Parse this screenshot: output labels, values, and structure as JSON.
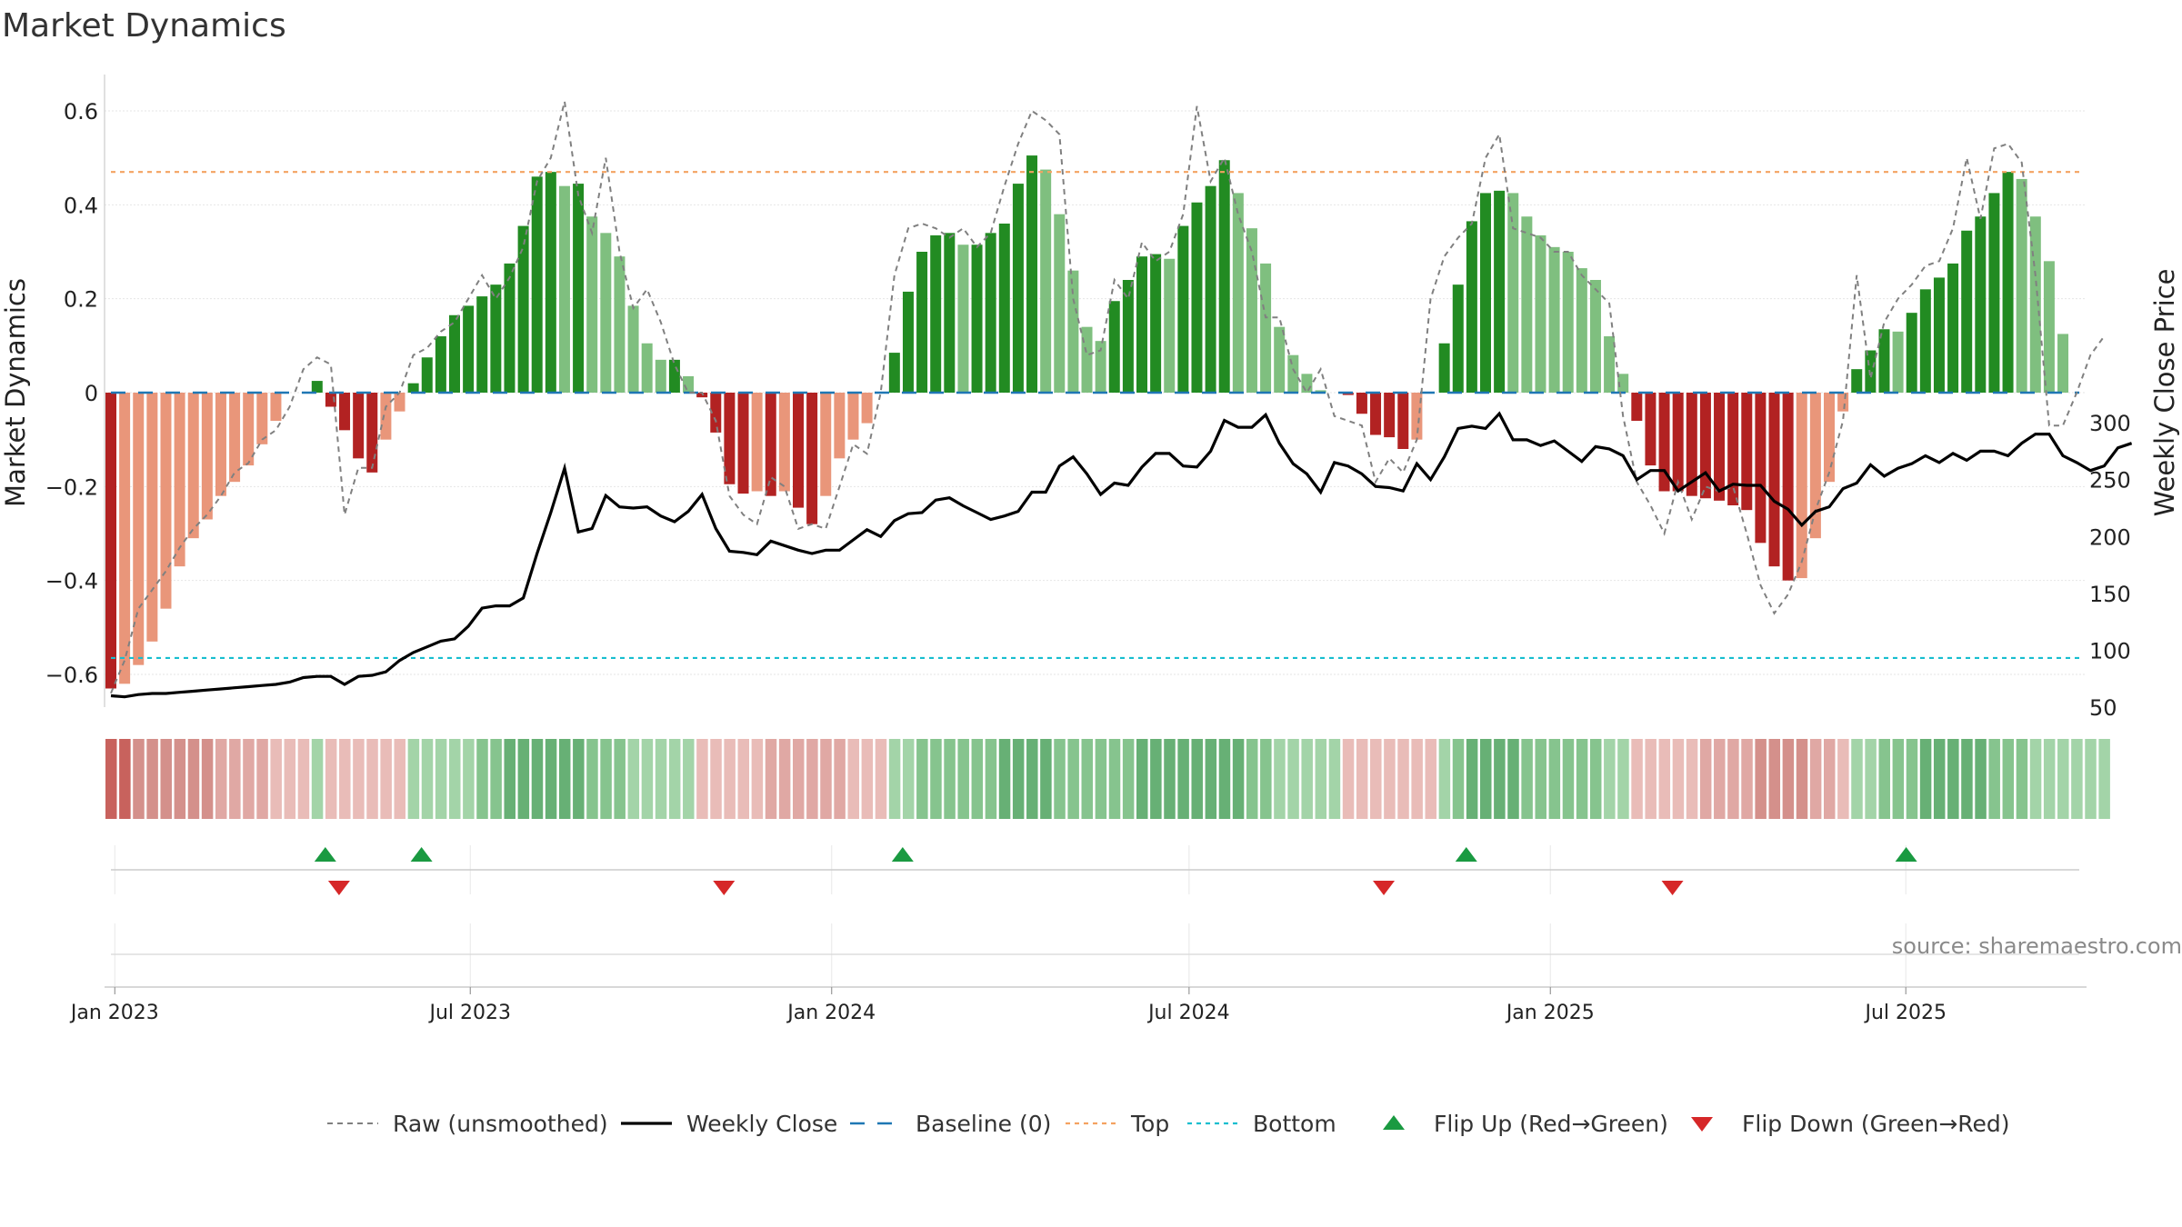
{
  "page": {
    "title": "Market Dynamics",
    "source": "source: sharemaestro.com"
  },
  "colors": {
    "strong_green": "#228b22",
    "light_green": "#7fbf7f",
    "strong_red": "#b22222",
    "light_red": "#e9967a",
    "raw_line": "#808080",
    "close_line": "#000000",
    "baseline": "#1f77b4",
    "top": "#f4a261",
    "bottom": "#17becf",
    "flip_up": "#1a9a41",
    "flip_down": "#d62728"
  },
  "chart_data": {
    "type": "bar",
    "title": "Market Dynamics",
    "ylabel_left": "Market Dynamics",
    "ylabel_right": "Weekly Close Price",
    "ylim_left": [
      -0.65,
      0.62
    ],
    "ylim_right": [
      40,
      320
    ],
    "yticks_left": [
      0.6,
      0.4,
      0.2,
      0,
      -0.2,
      -0.4,
      -0.6
    ],
    "ytick_labels_left": [
      "0.6",
      "0.4",
      "0.2",
      "0",
      "−0.2",
      "−0.4",
      "−0.6"
    ],
    "yticks_right": [
      300,
      250,
      200,
      150,
      100,
      50
    ],
    "ytick_labels_right": [
      "300",
      "250",
      "200",
      "150",
      "100",
      "50"
    ],
    "top_threshold": 0.47,
    "bottom_threshold": -0.565,
    "x_start": "2022-12-30",
    "x_step_days": 7,
    "x_ticks": [
      {
        "date": "2023-01-01",
        "label": "Jan 2023"
      },
      {
        "date": "2023-07-01",
        "label": "Jul 2023"
      },
      {
        "date": "2024-01-01",
        "label": "Jan 2024"
      },
      {
        "date": "2024-07-01",
        "label": "Jul 2024"
      },
      {
        "date": "2025-01-01",
        "label": "Jan 2025"
      },
      {
        "date": "2025-07-01",
        "label": "Jul 2025"
      }
    ],
    "dynamics": [
      -0.63,
      -0.62,
      -0.58,
      -0.53,
      -0.46,
      -0.37,
      -0.31,
      -0.27,
      -0.22,
      -0.19,
      -0.155,
      -0.11,
      -0.06,
      0.0,
      0.0,
      0.025,
      -0.03,
      -0.08,
      -0.14,
      -0.17,
      -0.1,
      -0.04,
      0.02,
      0.075,
      0.12,
      0.165,
      0.185,
      0.205,
      0.23,
      0.275,
      0.355,
      0.46,
      0.47,
      0.44,
      0.445,
      0.375,
      0.34,
      0.29,
      0.185,
      0.105,
      0.07,
      0.07,
      0.035,
      -0.01,
      -0.085,
      -0.195,
      -0.215,
      -0.21,
      -0.22,
      -0.21,
      -0.245,
      -0.28,
      -0.22,
      -0.14,
      -0.1,
      -0.065,
      0.0,
      0.085,
      0.215,
      0.3,
      0.335,
      0.34,
      0.315,
      0.315,
      0.34,
      0.36,
      0.445,
      0.505,
      0.475,
      0.38,
      0.26,
      0.14,
      0.11,
      0.195,
      0.24,
      0.29,
      0.295,
      0.285,
      0.355,
      0.405,
      0.44,
      0.495,
      0.425,
      0.35,
      0.275,
      0.14,
      0.08,
      0.04,
      0.005,
      0.0,
      -0.005,
      -0.045,
      -0.09,
      -0.095,
      -0.12,
      -0.1,
      0.0,
      0.105,
      0.23,
      0.365,
      0.425,
      0.43,
      0.425,
      0.375,
      0.335,
      0.31,
      0.3,
      0.265,
      0.24,
      0.12,
      0.04,
      -0.06,
      -0.155,
      -0.21,
      -0.21,
      -0.22,
      -0.225,
      -0.23,
      -0.24,
      -0.25,
      -0.32,
      -0.37,
      -0.4,
      -0.395,
      -0.31,
      -0.19,
      -0.04,
      0.05,
      0.09,
      0.135,
      0.13,
      0.17,
      0.22,
      0.245,
      0.275,
      0.345,
      0.375,
      0.425,
      0.47,
      0.455,
      0.375,
      0.28,
      0.125,
      0.0,
      0.0,
      0.0
    ],
    "raw": [
      -0.64,
      -0.57,
      -0.46,
      -0.42,
      -0.38,
      -0.33,
      -0.29,
      -0.26,
      -0.22,
      -0.17,
      -0.15,
      -0.1,
      -0.08,
      -0.03,
      0.05,
      0.075,
      0.06,
      -0.26,
      -0.16,
      -0.16,
      -0.03,
      0.0,
      0.08,
      0.095,
      0.13,
      0.15,
      0.2,
      0.25,
      0.2,
      0.245,
      0.31,
      0.45,
      0.5,
      0.62,
      0.42,
      0.34,
      0.5,
      0.3,
      0.18,
      0.22,
      0.15,
      0.06,
      0.0,
      0.0,
      -0.06,
      -0.22,
      -0.26,
      -0.28,
      -0.18,
      -0.2,
      -0.29,
      -0.28,
      -0.29,
      -0.2,
      -0.11,
      -0.13,
      0.0,
      0.25,
      0.35,
      0.36,
      0.35,
      0.33,
      0.35,
      0.31,
      0.34,
      0.44,
      0.53,
      0.6,
      0.58,
      0.55,
      0.2,
      0.08,
      0.09,
      0.24,
      0.2,
      0.32,
      0.28,
      0.3,
      0.38,
      0.61,
      0.45,
      0.5,
      0.38,
      0.3,
      0.16,
      0.16,
      0.05,
      0.0,
      0.05,
      -0.05,
      -0.06,
      -0.07,
      -0.19,
      -0.14,
      -0.17,
      -0.1,
      0.2,
      0.29,
      0.33,
      0.36,
      0.5,
      0.55,
      0.35,
      0.34,
      0.33,
      0.3,
      0.3,
      0.25,
      0.22,
      0.19,
      -0.05,
      -0.19,
      -0.24,
      -0.3,
      -0.19,
      -0.27,
      -0.2,
      -0.21,
      -0.2,
      -0.3,
      -0.41,
      -0.47,
      -0.43,
      -0.36,
      -0.25,
      -0.17,
      -0.06,
      0.25,
      0.03,
      0.15,
      0.2,
      0.23,
      0.27,
      0.28,
      0.35,
      0.5,
      0.37,
      0.52,
      0.53,
      0.49,
      0.25,
      -0.07,
      -0.07,
      0.0,
      0.08,
      0.12
    ],
    "close": [
      60,
      59,
      61,
      62,
      62,
      63,
      64,
      65,
      66,
      67,
      68,
      69,
      70,
      72,
      76,
      77,
      77,
      70,
      77,
      78,
      81,
      91,
      98,
      103,
      108,
      110,
      121,
      137,
      139,
      139,
      146,
      185,
      221,
      260,
      204,
      207,
      236,
      226,
      225,
      226,
      218,
      213,
      222,
      237,
      207,
      187,
      186,
      184,
      196,
      192,
      188,
      185,
      188,
      188,
      197,
      206,
      200,
      214,
      220,
      221,
      232,
      234,
      227,
      221,
      215,
      218,
      222,
      239,
      239,
      262,
      270,
      255,
      237,
      247,
      245,
      261,
      273,
      273,
      262,
      261,
      275,
      302,
      296,
      296,
      307,
      282,
      264,
      255,
      239,
      265,
      262,
      255,
      244,
      243,
      240,
      264,
      250,
      270,
      295,
      297,
      295,
      308,
      285,
      285,
      280,
      284,
      275,
      266,
      279,
      277,
      271,
      250,
      258,
      258,
      240,
      248,
      256,
      240,
      246,
      245,
      245,
      231,
      224,
      210,
      222,
      226,
      242,
      247,
      263,
      253,
      260,
      264,
      271,
      265,
      273,
      267,
      275,
      275,
      271,
      282,
      290,
      290,
      271,
      265,
      258,
      262,
      278,
      282
    ],
    "shading_tier": [
      4,
      4,
      3,
      3,
      3,
      3,
      3,
      3,
      2,
      2,
      2,
      2,
      1,
      1,
      1,
      1,
      1,
      1,
      1,
      1,
      1,
      1,
      1,
      1,
      1,
      1,
      1,
      2,
      2,
      3,
      3,
      3,
      3,
      3,
      3,
      2,
      2,
      2,
      1,
      1,
      1,
      1,
      1,
      1,
      1,
      1,
      1,
      1,
      2,
      2,
      2,
      2,
      2,
      2,
      1,
      1,
      1,
      1,
      1,
      2,
      2,
      2,
      2,
      2,
      2,
      3,
      3,
      3,
      3,
      2,
      2,
      2,
      2,
      2,
      2,
      3,
      3,
      3,
      3,
      3,
      3,
      3,
      3,
      2,
      2,
      1,
      1,
      1,
      1,
      1,
      1,
      1,
      1,
      1,
      1,
      1,
      1,
      1,
      2,
      3,
      3,
      3,
      3,
      2,
      2,
      2,
      2,
      2,
      2,
      1,
      1,
      1,
      1,
      1,
      1,
      1,
      2,
      2,
      2,
      2,
      3,
      3,
      3,
      3,
      2,
      2,
      1,
      1,
      1,
      2,
      2,
      2,
      3,
      3,
      3,
      3,
      3,
      2,
      2,
      2,
      1,
      1,
      1,
      1,
      1,
      1
    ],
    "flips_up": [
      15,
      22,
      57,
      98,
      130
    ],
    "flips_down": [
      16,
      44,
      92,
      113
    ],
    "legend": [
      {
        "key": "raw",
        "label": "Raw (unsmoothed)"
      },
      {
        "key": "close",
        "label": "Weekly Close"
      },
      {
        "key": "baseline",
        "label": "Baseline (0)"
      },
      {
        "key": "top",
        "label": "Top"
      },
      {
        "key": "bottom",
        "label": "Bottom"
      },
      {
        "key": "flip_up",
        "label": "Flip Up (Red→Green)"
      },
      {
        "key": "flip_down",
        "label": "Flip Down (Green→Red)"
      }
    ]
  }
}
